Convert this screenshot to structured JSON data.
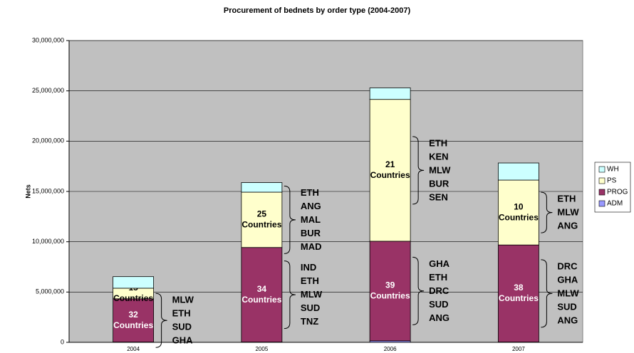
{
  "chart_data": {
    "type": "bar",
    "stacked": true,
    "title": "Procurement of bednets by order type (2004-2007)",
    "y_label": "Nets",
    "categories": [
      "2004",
      "2005",
      "2006",
      "2007"
    ],
    "ylim": [
      0,
      30000000
    ],
    "yticks": [
      0,
      {
        "value": 5000000,
        "label": "5,000,000"
      },
      {
        "value": 10000000,
        "label": "10,000,000"
      },
      {
        "value": 15000000,
        "label": "15,000,000"
      },
      {
        "value": 20000000,
        "label": "20,000,000"
      },
      {
        "value": 25000000,
        "label": "25,000,000"
      },
      {
        "value": 30000000,
        "label": "30,000,000"
      }
    ],
    "grid": true,
    "legend": "right",
    "series": [
      {
        "name": "ADM",
        "color": "#9999ff",
        "values": [
          30000,
          30000,
          150000,
          30000
        ],
        "labels": [
          null,
          null,
          null,
          null
        ],
        "countries": [
          null,
          null,
          null,
          null
        ]
      },
      {
        "name": "PROG",
        "color": "#993366",
        "values": [
          4300000,
          9400000,
          9900000,
          9650000
        ],
        "labels": [
          [
            "32",
            "Countries"
          ],
          [
            "34",
            "Countries"
          ],
          [
            "39",
            "Countries"
          ],
          [
            "38",
            "Countries"
          ]
        ],
        "countries": [
          [
            "MLW",
            "ETH",
            "SUD",
            "GHA"
          ],
          [
            "IND",
            "ETH",
            "MLW",
            "SUD",
            "TNZ"
          ],
          [
            "GHA",
            "ETH",
            "DRC",
            "SUD",
            "ANG"
          ],
          [
            "DRC",
            "GHA",
            "MLW",
            "SUD",
            "ANG"
          ]
        ]
      },
      {
        "name": "PS",
        "color": "#ffffcc",
        "values": [
          1050000,
          5500000,
          14100000,
          6450000
        ],
        "labels": [
          [
            "15",
            "Countries"
          ],
          [
            "25",
            "Countries"
          ],
          [
            "21",
            "Countries"
          ],
          [
            "10",
            "Countries"
          ]
        ],
        "countries": [
          null,
          [
            "ETH",
            "ANG",
            "MAL",
            "BUR",
            "MAD"
          ],
          [
            "ETH",
            "KEN",
            "MLW",
            "BUR",
            "SEN"
          ],
          [
            "ETH",
            "MLW",
            "ANG"
          ]
        ]
      },
      {
        "name": "WH",
        "color": "#ccffff",
        "values": [
          1150000,
          950000,
          1150000,
          1700000
        ],
        "labels": [
          null,
          null,
          null,
          null
        ],
        "countries": [
          null,
          null,
          null,
          null
        ]
      }
    ]
  }
}
